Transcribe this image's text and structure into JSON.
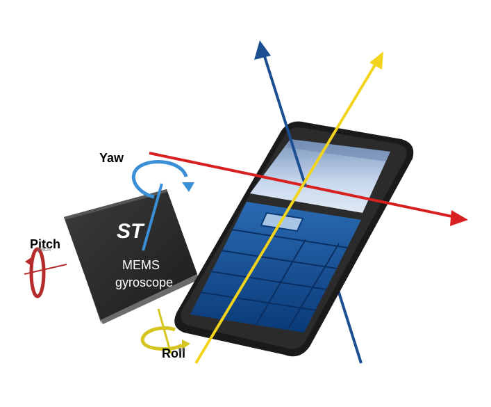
{
  "labels": {
    "yaw": "Yaw",
    "pitch": "Pitch",
    "roll": "Roll",
    "pitch_small": "pitch",
    "roll_small": "roll"
  },
  "chip": {
    "logo": "ST",
    "line1": "MEMS",
    "line2": "gyroscope"
  },
  "colors": {
    "yaw_axis": "#d82020",
    "vertical_axis": "#1c4f91",
    "roll_axis": "#f2d41c",
    "yaw_arrow": "#3a8fd6",
    "pitch_arrow": "#b52a2a",
    "roll_arrow": "#d6c520",
    "chip_body": "#2a2a2a",
    "phone_screen": "#b9cde6",
    "keypad": "#0d4f95"
  }
}
